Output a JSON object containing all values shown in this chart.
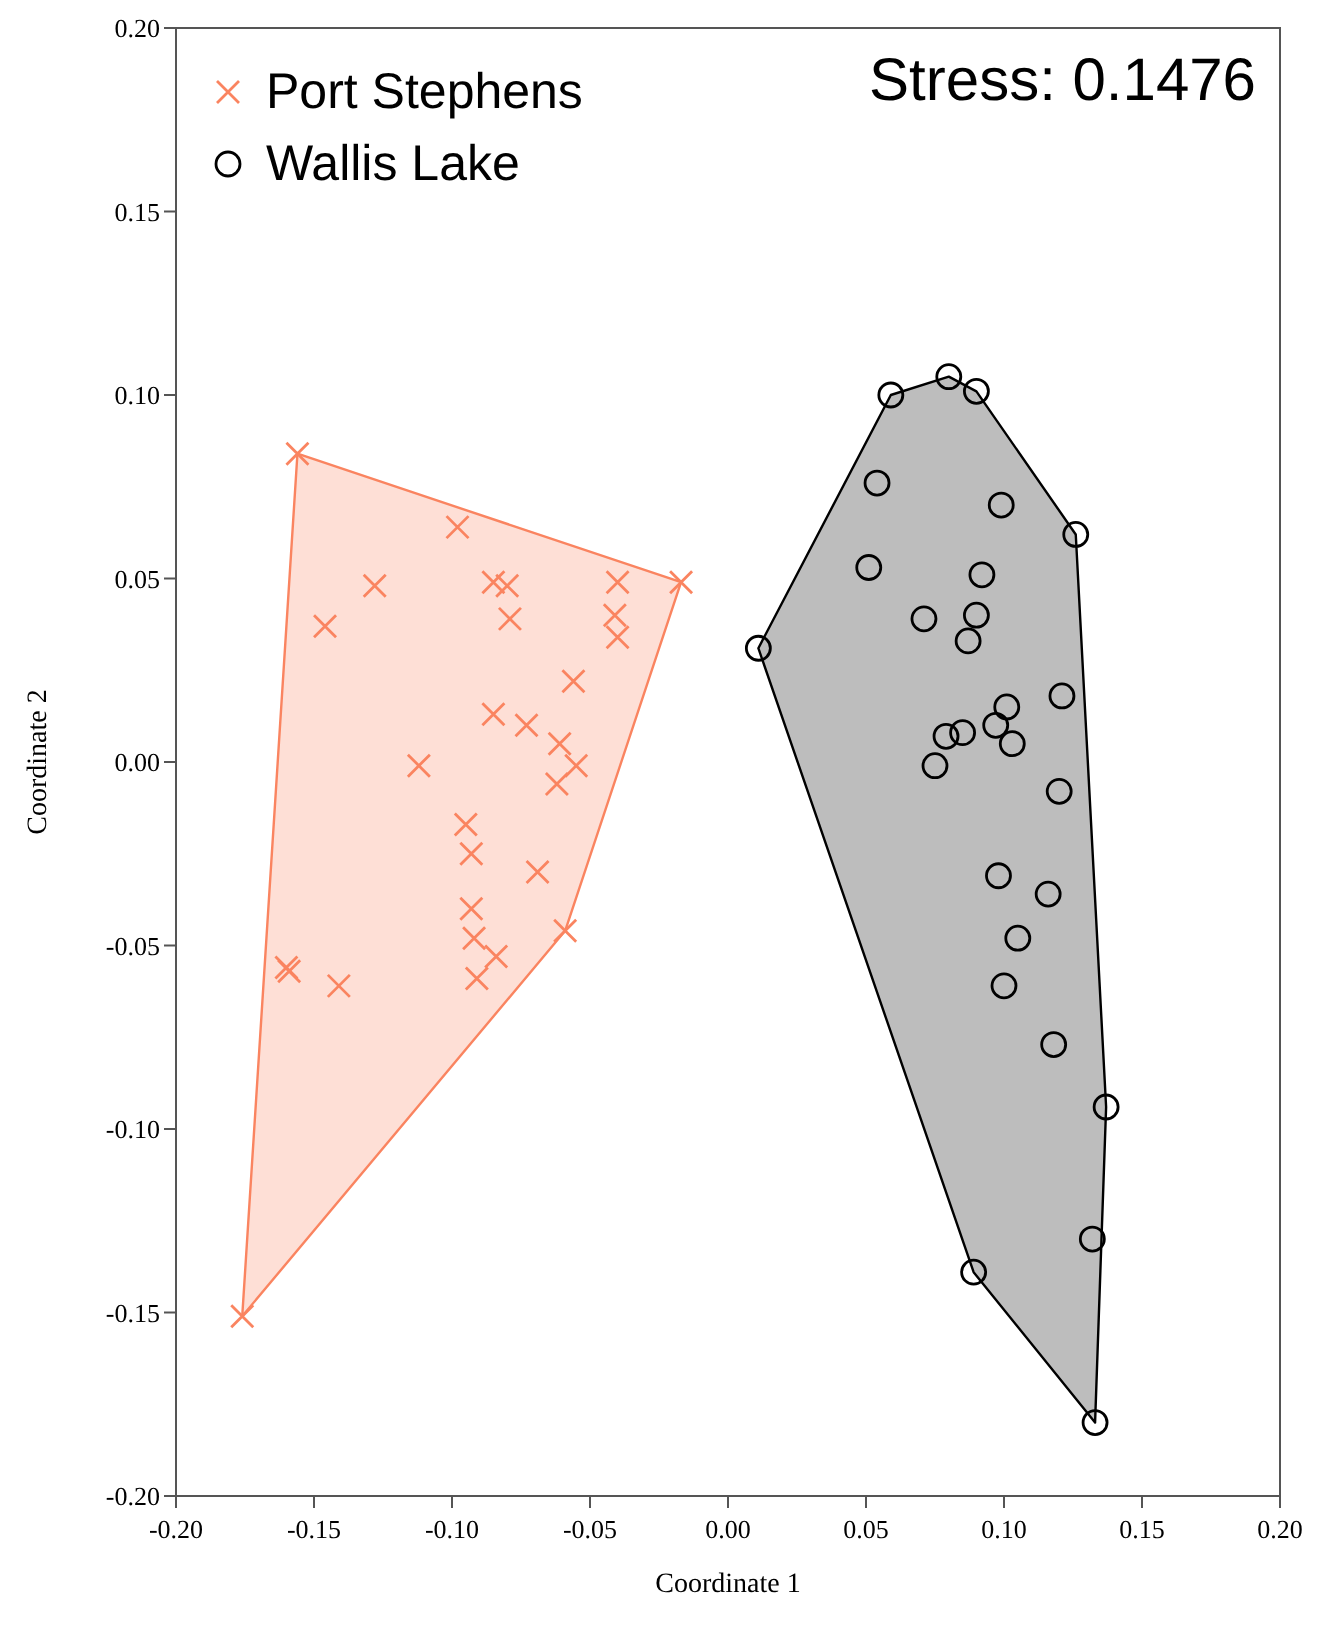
{
  "chart_data": {
    "type": "scatter",
    "xlabel": "Coordinate 1",
    "ylabel": "Coordinate 2",
    "xlim": [
      -0.2,
      0.2
    ],
    "ylim": [
      -0.2,
      0.2
    ],
    "xticks": [
      {
        "value": -0.2,
        "label": "-0.20"
      },
      {
        "value": -0.15,
        "label": "-0.15"
      },
      {
        "value": -0.1,
        "label": "-0.10"
      },
      {
        "value": -0.05,
        "label": "-0.05"
      },
      {
        "value": 0,
        "label": "0.00"
      },
      {
        "value": 0.05,
        "label": "0.05"
      },
      {
        "value": 0.1,
        "label": "0.10"
      },
      {
        "value": 0.15,
        "label": "0.15"
      },
      {
        "value": 0.2,
        "label": "0.20"
      }
    ],
    "yticks": [
      {
        "value": -0.2,
        "label": "-0.20"
      },
      {
        "value": -0.15,
        "label": "-0.15"
      },
      {
        "value": -0.1,
        "label": "-0.10"
      },
      {
        "value": -0.05,
        "label": "-0.05"
      },
      {
        "value": 0,
        "label": "0.00"
      },
      {
        "value": 0.05,
        "label": "0.05"
      },
      {
        "value": 0.1,
        "label": "0.10"
      },
      {
        "value": 0.15,
        "label": "0.15"
      },
      {
        "value": 0.2,
        "label": "0.20"
      }
    ],
    "legend": "top left",
    "annotations": [
      "Stress: 0.1476"
    ],
    "series": [
      {
        "name": "Port Stephens",
        "color": "#fa8460",
        "marker": "cross",
        "x": [
          -0.156,
          -0.098,
          -0.128,
          -0.085,
          -0.08,
          -0.04,
          -0.017,
          -0.146,
          -0.079,
          -0.041,
          -0.04,
          -0.056,
          -0.085,
          -0.073,
          -0.061,
          -0.055,
          -0.112,
          -0.062,
          -0.095,
          -0.093,
          -0.069,
          -0.093,
          -0.059,
          -0.092,
          -0.084,
          -0.091,
          -0.16,
          -0.159,
          -0.141,
          -0.176
        ],
        "values": [
          0.084,
          0.064,
          0.048,
          0.049,
          0.048,
          0.049,
          0.049,
          0.037,
          0.039,
          0.04,
          0.034,
          0.022,
          0.013,
          0.01,
          0.005,
          -0.001,
          -0.001,
          -0.006,
          -0.017,
          -0.025,
          -0.03,
          -0.04,
          -0.046,
          -0.048,
          -0.053,
          -0.059,
          -0.056,
          -0.057,
          -0.061,
          -0.151
        ]
      },
      {
        "name": "Wallis Lake",
        "color": "#000000",
        "marker": "circle",
        "x": [
          0.059,
          0.08,
          0.09,
          0.054,
          0.099,
          0.126,
          0.051,
          0.092,
          0.071,
          0.09,
          0.087,
          0.011,
          0.121,
          0.101,
          0.097,
          0.085,
          0.079,
          0.103,
          0.075,
          0.12,
          0.098,
          0.116,
          0.105,
          0.1,
          0.118,
          0.137,
          0.132,
          0.089,
          0.133
        ],
        "values": [
          0.1,
          0.105,
          0.101,
          0.076,
          0.07,
          0.062,
          0.053,
          0.051,
          0.039,
          0.04,
          0.033,
          0.031,
          0.018,
          0.015,
          0.01,
          0.008,
          0.007,
          0.005,
          -0.001,
          -0.008,
          -0.031,
          -0.036,
          -0.048,
          -0.061,
          -0.077,
          -0.094,
          -0.13,
          -0.139,
          -0.18
        ]
      }
    ]
  }
}
